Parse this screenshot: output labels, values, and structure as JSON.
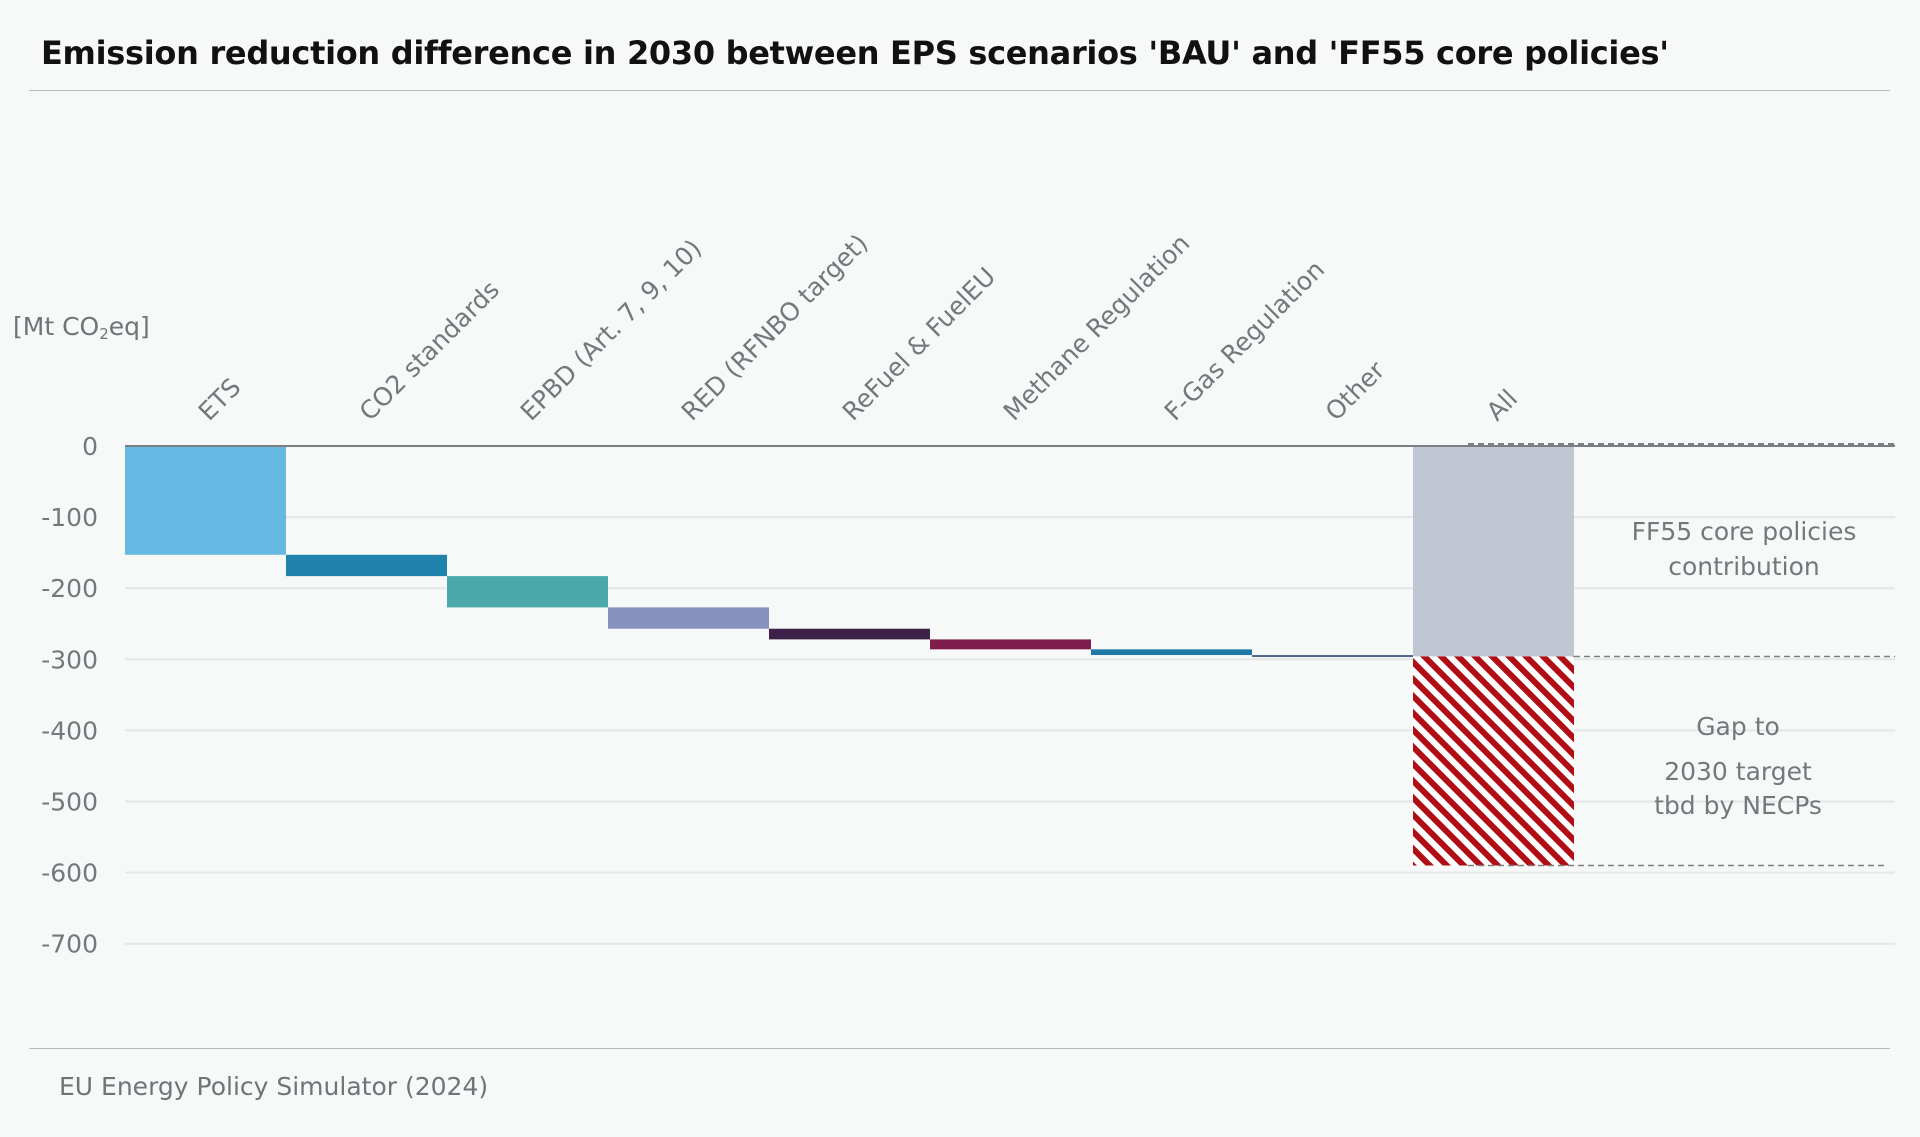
{
  "title": "Emission reduction difference in 2030 between EPS scenarios 'BAU' and 'FF55 core policies'",
  "source": "EU Energy Policy Simulator (2024)",
  "unit": {
    "prefix": "[Mt CO",
    "subscript": "2",
    "suffix": "eq]"
  },
  "chart_data": {
    "type": "bar",
    "subtype": "waterfall",
    "title": "Emission reduction difference in 2030 between EPS scenarios 'BAU' and 'FF55 core policies'",
    "ylabel": "[Mt CO2eq]",
    "ylim": [
      -800,
      0
    ],
    "yticks": [
      0,
      -100,
      -200,
      -300,
      -400,
      -500,
      -600,
      -700
    ],
    "grid": true,
    "categories": [
      "ETS",
      "CO2 standards",
      "EPBD (Art. 7, 9, 10)",
      "RED (RFNBO target)",
      "ReFuel & FuelEU",
      "Methane Regulation",
      "F-Gas Regulation",
      "Other",
      "All"
    ],
    "steps": [
      {
        "category": "ETS",
        "delta": -153,
        "color": "#64b8e2"
      },
      {
        "category": "CO2 standards",
        "delta": -30,
        "color": "#2083ae"
      },
      {
        "category": "EPBD (Art. 7, 9, 10)",
        "delta": -44,
        "color": "#4aa7aa"
      },
      {
        "category": "RED (RFNBO target)",
        "delta": -30,
        "color": "#8592bf"
      },
      {
        "category": "ReFuel & FuelEU",
        "delta": -15,
        "color": "#3e2148"
      },
      {
        "category": "Methane Regulation",
        "delta": -14,
        "color": "#7f1e4d"
      },
      {
        "category": "F-Gas Regulation",
        "delta": -8,
        "color": "#1e79a5"
      },
      {
        "category": "Other",
        "delta": -2,
        "color": "#4b6a8a"
      }
    ],
    "total": {
      "category": "All",
      "contribution": -296,
      "contribution_color": "#c0c6d2",
      "gap_end": -590,
      "gap_color": "#b00d14",
      "gap_pattern": "diagonal-hatch"
    },
    "annotations": {
      "contribution": [
        "FF55 core policies",
        "contribution"
      ],
      "gap": [
        "Gap to",
        "2030 target",
        "tbd by NECPs"
      ]
    },
    "reference_lines": [
      0,
      -296,
      -590
    ]
  }
}
